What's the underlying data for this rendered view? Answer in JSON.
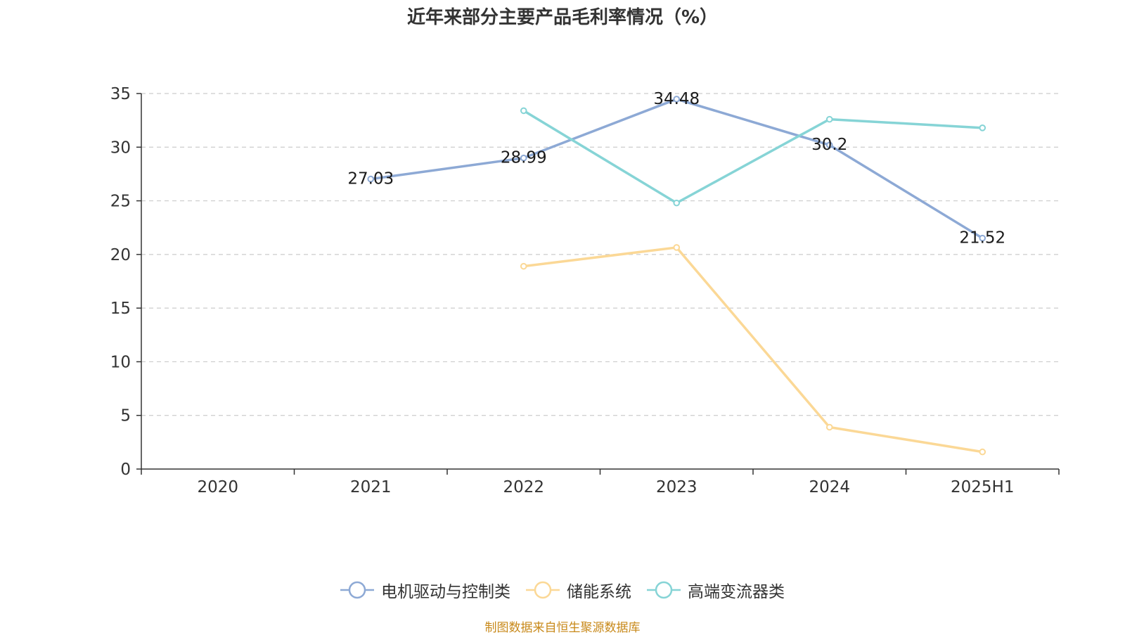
{
  "chart_data": {
    "type": "line",
    "title": "近年来部分主要产品毛利率情况（%）",
    "xlabel": "",
    "ylabel": "",
    "categories": [
      "2020",
      "2021",
      "2022",
      "2023",
      "2024",
      "2025H1"
    ],
    "ylim": [
      0,
      35
    ],
    "yticks": [
      0,
      5,
      10,
      15,
      20,
      25,
      30,
      35
    ],
    "grid": true,
    "legend_position": "bottom",
    "series": [
      {
        "name": "电机驱动与控制类",
        "color": "#8da9d5",
        "values": [
          null,
          27.03,
          28.99,
          34.48,
          30.2,
          21.52
        ],
        "labels": [
          "",
          "27.03",
          "28.99",
          "34.48",
          "30.2",
          "21.52"
        ]
      },
      {
        "name": "储能系统",
        "color": "#fbd896",
        "values": [
          null,
          null,
          18.9,
          20.65,
          3.9,
          1.6
        ],
        "labels": [
          "",
          "",
          "",
          "",
          "",
          ""
        ]
      },
      {
        "name": "高端变流器类",
        "color": "#86d4d6",
        "values": [
          null,
          null,
          33.4,
          24.8,
          32.6,
          31.8
        ],
        "labels": [
          "",
          "",
          "",
          "",
          "",
          ""
        ]
      }
    ]
  },
  "source_note": "制图数据来自恒生聚源数据库"
}
